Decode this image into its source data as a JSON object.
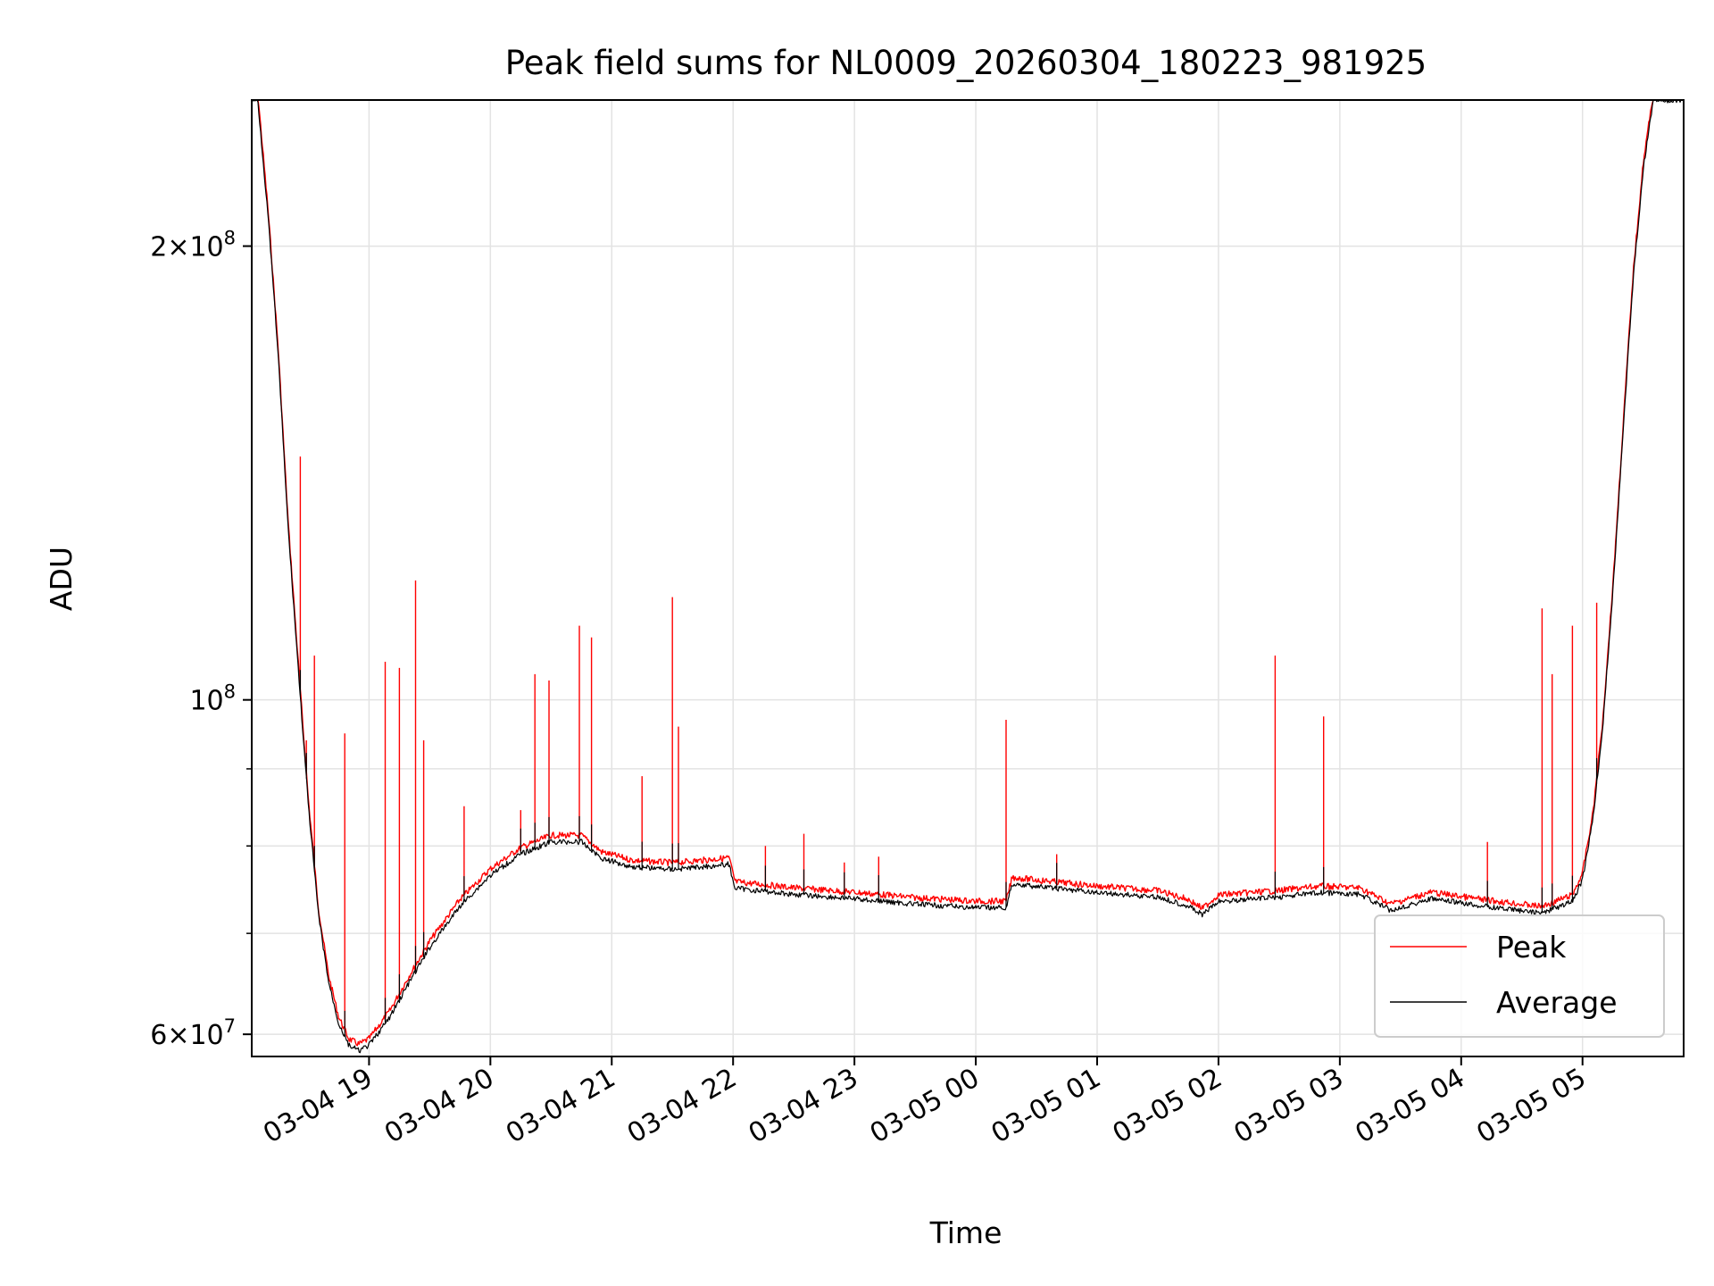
{
  "chart_data": {
    "type": "line",
    "title": "Peak field sums for NL0009_20260304_180223_981925",
    "xlabel": "Time",
    "ylabel": "ADU",
    "y_scale": "log",
    "ylim": [
      58000000,
      250000000
    ],
    "xlim": [
      "2026-03-04 18:02",
      "2026-03-05 05:50"
    ],
    "grid": true,
    "legend_position": "lower-right",
    "x_ticks": [
      {
        "t": "2026-03-04 19:00",
        "label": "03-04 19"
      },
      {
        "t": "2026-03-04 20:00",
        "label": "03-04 20"
      },
      {
        "t": "2026-03-04 21:00",
        "label": "03-04 21"
      },
      {
        "t": "2026-03-04 22:00",
        "label": "03-04 22"
      },
      {
        "t": "2026-03-04 23:00",
        "label": "03-04 23"
      },
      {
        "t": "2026-03-05 00:00",
        "label": "03-05 00"
      },
      {
        "t": "2026-03-05 01:00",
        "label": "03-05 01"
      },
      {
        "t": "2026-03-05 02:00",
        "label": "03-05 02"
      },
      {
        "t": "2026-03-05 03:00",
        "label": "03-05 03"
      },
      {
        "t": "2026-03-05 04:00",
        "label": "03-05 04"
      },
      {
        "t": "2026-03-05 05:00",
        "label": "03-05 05"
      }
    ],
    "y_ticks": [
      {
        "value": 60000000,
        "mant": "6",
        "exp": "7"
      },
      {
        "value": 100000000,
        "mant": "",
        "exp": "8"
      },
      {
        "value": 200000000,
        "mant": "2",
        "exp": "8"
      }
    ],
    "y_minor_ticks": [
      70000000,
      80000000,
      90000000
    ],
    "series": [
      {
        "name": "Average",
        "color": "#000000",
        "points": [
          [
            "2026-03-04 18:02",
            250000000
          ],
          [
            "2026-03-04 18:05",
            250000000
          ],
          [
            "2026-03-04 18:10",
            210000000
          ],
          [
            "2026-03-04 18:15",
            170000000
          ],
          [
            "2026-03-04 18:20",
            130000000
          ],
          [
            "2026-03-04 18:25",
            105000000
          ],
          [
            "2026-03-04 18:30",
            85000000
          ],
          [
            "2026-03-04 18:35",
            72000000
          ],
          [
            "2026-03-04 18:40",
            65000000
          ],
          [
            "2026-03-04 18:45",
            61000000
          ],
          [
            "2026-03-04 18:50",
            59000000
          ],
          [
            "2026-03-04 18:55",
            58500000
          ],
          [
            "2026-03-04 19:00",
            59000000
          ],
          [
            "2026-03-04 19:10",
            61500000
          ],
          [
            "2026-03-04 19:20",
            65000000
          ],
          [
            "2026-03-04 19:30",
            68500000
          ],
          [
            "2026-03-04 19:45",
            73000000
          ],
          [
            "2026-03-04 20:00",
            76500000
          ],
          [
            "2026-03-04 20:15",
            79000000
          ],
          [
            "2026-03-04 20:30",
            80500000
          ],
          [
            "2026-03-04 20:45",
            80500000
          ],
          [
            "2026-03-04 20:55",
            78500000
          ],
          [
            "2026-03-04 21:10",
            77500000
          ],
          [
            "2026-03-04 21:30",
            77200000
          ],
          [
            "2026-03-04 21:50",
            77600000
          ],
          [
            "2026-03-04 21:58",
            77800000
          ],
          [
            "2026-03-04 22:01",
            75000000
          ],
          [
            "2026-03-04 22:30",
            74300000
          ],
          [
            "2026-03-04 23:00",
            73800000
          ],
          [
            "2026-03-04 23:30",
            73200000
          ],
          [
            "2026-03-05 00:00",
            72800000
          ],
          [
            "2026-03-05 00:15",
            72800000
          ],
          [
            "2026-03-05 00:18",
            75500000
          ],
          [
            "2026-03-05 00:30",
            75200000
          ],
          [
            "2026-03-05 01:00",
            74500000
          ],
          [
            "2026-03-05 01:30",
            74000000
          ],
          [
            "2026-03-05 01:45",
            73000000
          ],
          [
            "2026-03-05 01:52",
            72000000
          ],
          [
            "2026-03-05 02:00",
            73500000
          ],
          [
            "2026-03-05 02:30",
            74000000
          ],
          [
            "2026-03-05 02:50",
            74500000
          ],
          [
            "2026-03-05 03:10",
            74300000
          ],
          [
            "2026-03-05 03:25",
            72500000
          ],
          [
            "2026-03-05 03:45",
            73800000
          ],
          [
            "2026-03-05 04:10",
            73000000
          ],
          [
            "2026-03-05 04:40",
            72200000
          ],
          [
            "2026-03-05 04:55",
            73500000
          ],
          [
            "2026-03-05 05:00",
            76000000
          ],
          [
            "2026-03-05 05:05",
            83000000
          ],
          [
            "2026-03-05 05:10",
            96000000
          ],
          [
            "2026-03-05 05:15",
            118000000
          ],
          [
            "2026-03-05 05:20",
            150000000
          ],
          [
            "2026-03-05 05:25",
            190000000
          ],
          [
            "2026-03-05 05:30",
            225000000
          ],
          [
            "2026-03-05 05:35",
            250000000
          ],
          [
            "2026-03-05 05:50",
            250000000
          ]
        ]
      },
      {
        "name": "Peak",
        "color": "#ff0000",
        "offset_ratio": 1.01,
        "spikes": [
          [
            "2026-03-04 18:26",
            145000000
          ],
          [
            "2026-03-04 18:29",
            94000000
          ],
          [
            "2026-03-04 18:33",
            107000000
          ],
          [
            "2026-03-04 18:48",
            95000000
          ],
          [
            "2026-03-04 19:08",
            106000000
          ],
          [
            "2026-03-04 19:15",
            105000000
          ],
          [
            "2026-03-04 19:23",
            120000000
          ],
          [
            "2026-03-04 19:27",
            94000000
          ],
          [
            "2026-03-04 19:47",
            85000000
          ],
          [
            "2026-03-04 20:15",
            84500000
          ],
          [
            "2026-03-04 20:22",
            104000000
          ],
          [
            "2026-03-04 20:29",
            103000000
          ],
          [
            "2026-03-04 20:44",
            112000000
          ],
          [
            "2026-03-04 20:50",
            110000000
          ],
          [
            "2026-03-04 21:15",
            89000000
          ],
          [
            "2026-03-04 21:30",
            117000000
          ],
          [
            "2026-03-04 21:33",
            96000000
          ],
          [
            "2026-03-04 22:16",
            80000000
          ],
          [
            "2026-03-04 22:35",
            81500000
          ],
          [
            "2026-03-04 22:55",
            78000000
          ],
          [
            "2026-03-04 23:12",
            78700000
          ],
          [
            "2026-03-05 00:15",
            97000000
          ],
          [
            "2026-03-05 00:40",
            79000000
          ],
          [
            "2026-03-05 02:28",
            107000000
          ],
          [
            "2026-03-05 02:52",
            97500000
          ],
          [
            "2026-03-05 04:13",
            80500000
          ],
          [
            "2026-03-05 04:40",
            115000000
          ],
          [
            "2026-03-05 04:45",
            104000000
          ],
          [
            "2026-03-05 04:55",
            112000000
          ],
          [
            "2026-03-05 05:07",
            116000000
          ]
        ]
      }
    ]
  }
}
